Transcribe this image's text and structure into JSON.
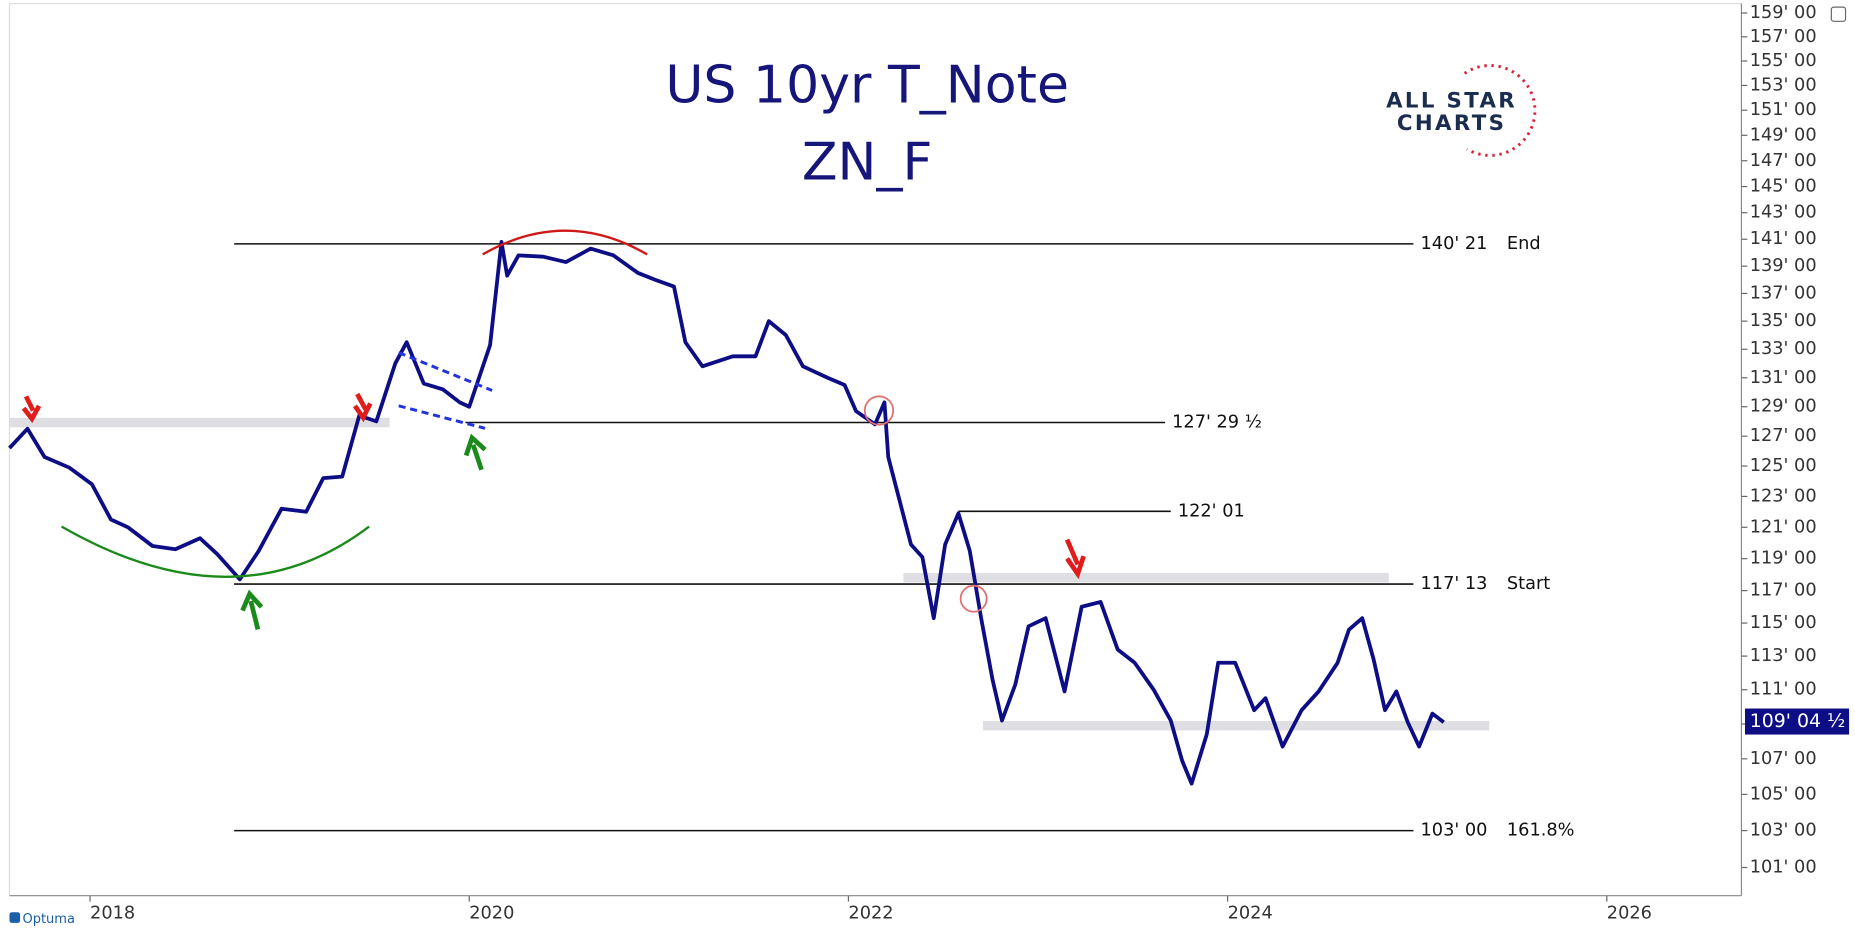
{
  "chart_data": {
    "type": "line",
    "title": "US 10yr T_Note",
    "subtitle": "ZN_F",
    "logo": [
      "ALL STAR",
      "CHARTS"
    ],
    "footer": "Optuma",
    "color": "#0d0d85",
    "log": true,
    "xlim": [
      2017.575,
      2026.71
    ],
    "xticks": [
      2018,
      2020,
      2022,
      2024,
      2026
    ],
    "ylim": [
      99.5,
      159.8
    ],
    "yticks": [
      {
        "value": 159,
        "label": "159' 00"
      },
      {
        "value": 157,
        "label": "157' 00"
      },
      {
        "value": 155,
        "label": "155' 00"
      },
      {
        "value": 153,
        "label": "153' 00"
      },
      {
        "value": 151,
        "label": "151' 00"
      },
      {
        "value": 149,
        "label": "149' 00"
      },
      {
        "value": 147,
        "label": "147' 00"
      },
      {
        "value": 145,
        "label": "145' 00"
      },
      {
        "value": 143,
        "label": "143' 00"
      },
      {
        "value": 141,
        "label": "141' 00"
      },
      {
        "value": 139,
        "label": "139' 00"
      },
      {
        "value": 137,
        "label": "137' 00"
      },
      {
        "value": 135,
        "label": "135' 00"
      },
      {
        "value": 133,
        "label": "133' 00"
      },
      {
        "value": 131,
        "label": "131' 00"
      },
      {
        "value": 129,
        "label": "129' 00"
      },
      {
        "value": 127,
        "label": "127' 00"
      },
      {
        "value": 125,
        "label": "125' 00"
      },
      {
        "value": 123,
        "label": "123' 00"
      },
      {
        "value": 121,
        "label": "121' 00"
      },
      {
        "value": 119,
        "label": "119' 00"
      },
      {
        "value": 117,
        "label": "117' 00"
      },
      {
        "value": 115,
        "label": "115' 00"
      },
      {
        "value": 113,
        "label": "113' 00"
      },
      {
        "value": 111,
        "label": "111' 00"
      },
      {
        "value": 109,
        "label": "109' 00"
      },
      {
        "value": 107,
        "label": "107' 00"
      },
      {
        "value": 105,
        "label": "105' 00"
      },
      {
        "value": 103,
        "label": "103' 00"
      },
      {
        "value": 101,
        "label": "101' 00"
      }
    ],
    "x": [
      2017.575,
      2017.67,
      2017.76,
      2017.89,
      2018.01,
      2018.11,
      2018.2,
      2018.33,
      2018.45,
      2018.58,
      2018.67,
      2018.79,
      2018.89,
      2019.01,
      2019.14,
      2019.23,
      2019.33,
      2019.42,
      2019.51,
      2019.61,
      2019.67,
      2019.76,
      2019.86,
      2019.95,
      2020.0,
      2020.11,
      2020.17,
      2020.2,
      2020.26,
      2020.39,
      2020.51,
      2020.64,
      2020.76,
      2020.89,
      2020.98,
      2021.08,
      2021.14,
      2021.23,
      2021.39,
      2021.51,
      2021.58,
      2021.67,
      2021.76,
      2021.89,
      2021.98,
      2022.04,
      2022.14,
      2022.19,
      2022.21,
      2022.26,
      2022.33,
      2022.39,
      2022.45,
      2022.51,
      2022.58,
      2022.64,
      2022.7,
      2022.76,
      2022.81,
      2022.88,
      2022.95,
      2023.04,
      2023.14,
      2023.23,
      2023.33,
      2023.42,
      2023.51,
      2023.61,
      2023.7,
      2023.76,
      2023.81,
      2023.89,
      2023.95,
      2024.04,
      2024.14,
      2024.2,
      2024.29,
      2024.39,
      2024.48,
      2024.58,
      2024.64,
      2024.71,
      2024.77,
      2024.83,
      2024.89,
      2024.95,
      2025.01,
      2025.08,
      2025.14
    ],
    "values": [
      126.2,
      127.5,
      125.6,
      124.9,
      123.8,
      121.5,
      121.0,
      119.8,
      119.6,
      120.3,
      119.3,
      117.7,
      119.5,
      122.2,
      122.0,
      124.2,
      124.3,
      128.4,
      128.0,
      132.0,
      133.5,
      130.6,
      130.2,
      129.3,
      129.0,
      133.3,
      140.8,
      138.3,
      139.8,
      139.7,
      139.3,
      140.3,
      139.8,
      138.5,
      138.0,
      137.5,
      133.5,
      131.8,
      132.5,
      132.5,
      135.0,
      134.0,
      131.8,
      131.0,
      130.5,
      128.7,
      127.8,
      129.3,
      125.6,
      123.2,
      119.9,
      119.1,
      115.3,
      119.9,
      121.9,
      119.5,
      115.3,
      111.6,
      109.2,
      111.3,
      114.8,
      115.3,
      110.9,
      116.0,
      116.3,
      113.4,
      112.6,
      111.0,
      109.2,
      106.9,
      105.6,
      108.4,
      112.6,
      112.6,
      109.8,
      110.5,
      107.7,
      109.8,
      110.9,
      112.6,
      114.6,
      115.3,
      112.8,
      109.8,
      110.9,
      109.1,
      107.7,
      109.6,
      109.1
    ],
    "last": {
      "value": 109.140625,
      "label": "109' 04 ½"
    },
    "levels": [
      {
        "value": 140.65625,
        "label": "140' 21",
        "note": "End",
        "x": [
          2018.76,
          2024.98
        ]
      },
      {
        "value": 127.921875,
        "label": "127' 29 ½",
        "x": [
          2019.98,
          2023.67
        ]
      },
      {
        "value": 122.03125,
        "label": "122' 01",
        "x": [
          2022.58,
          2023.7
        ]
      },
      {
        "value": 117.40625,
        "label": "117' 13",
        "note": "Start",
        "x": [
          2018.76,
          2024.98
        ]
      },
      {
        "value": 103,
        "label": "103' 00",
        "note": "161.8%",
        "x": [
          2018.76,
          2024.98
        ]
      }
    ],
    "zones": [
      {
        "value": 127.921875,
        "x": [
          2017.575,
          2019.58
        ]
      },
      {
        "value": 117.8,
        "x": [
          2022.29,
          2024.85
        ]
      },
      {
        "value": 108.9,
        "x": [
          2022.71,
          2025.38
        ]
      }
    ]
  }
}
